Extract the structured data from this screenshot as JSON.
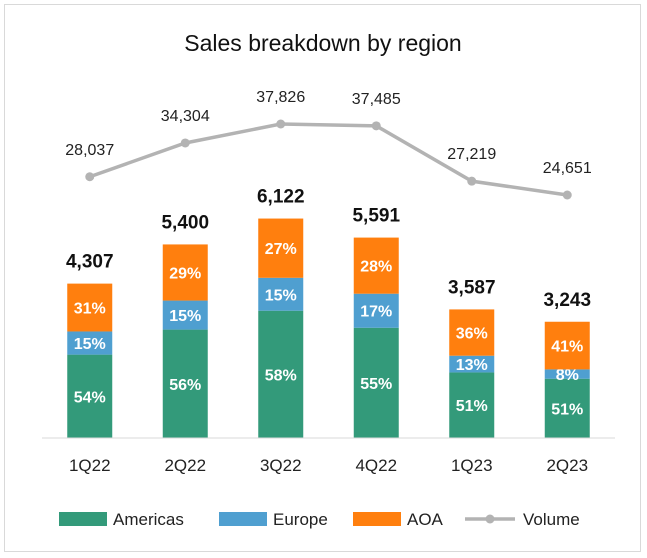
{
  "chart_data": {
    "type": "bar",
    "title": "Sales breakdown by region",
    "categories": [
      "1Q22",
      "2Q22",
      "3Q22",
      "4Q22",
      "1Q23",
      "2Q23"
    ],
    "totals": [
      4307,
      5400,
      6122,
      5591,
      3587,
      3243
    ],
    "total_labels": [
      "4,307",
      "5,400",
      "6,122",
      "5,591",
      "3,587",
      "3,243"
    ],
    "ylim": [
      0,
      6500
    ],
    "series": [
      {
        "name": "Americas",
        "color": "#339a7a",
        "shares": [
          54,
          56,
          58,
          55,
          51,
          51
        ],
        "labels": [
          "54%",
          "56%",
          "58%",
          "55%",
          "51%",
          "51%"
        ]
      },
      {
        "name": "Europe",
        "color": "#4f9fd0",
        "shares": [
          15,
          15,
          15,
          17,
          13,
          8
        ],
        "labels": [
          "15%",
          "15%",
          "15%",
          "17%",
          "13%",
          "8%"
        ]
      },
      {
        "name": "AOA",
        "color": "#ff7f0e",
        "shares": [
          31,
          29,
          27,
          28,
          36,
          41
        ],
        "labels": [
          "31%",
          "29%",
          "27%",
          "28%",
          "36%",
          "41%"
        ]
      }
    ],
    "line": {
      "name": "Volume",
      "color": "#b3b3b3",
      "values": [
        28037,
        34304,
        37826,
        37485,
        27219,
        24651
      ],
      "labels": [
        "28,037",
        "34,304",
        "37,826",
        "37,485",
        "27,219",
        "24,651"
      ],
      "ylim": [
        0,
        48000
      ]
    },
    "legend": {
      "position": "bottom",
      "items": [
        "Americas",
        "Europe",
        "AOA",
        "Volume"
      ]
    }
  }
}
